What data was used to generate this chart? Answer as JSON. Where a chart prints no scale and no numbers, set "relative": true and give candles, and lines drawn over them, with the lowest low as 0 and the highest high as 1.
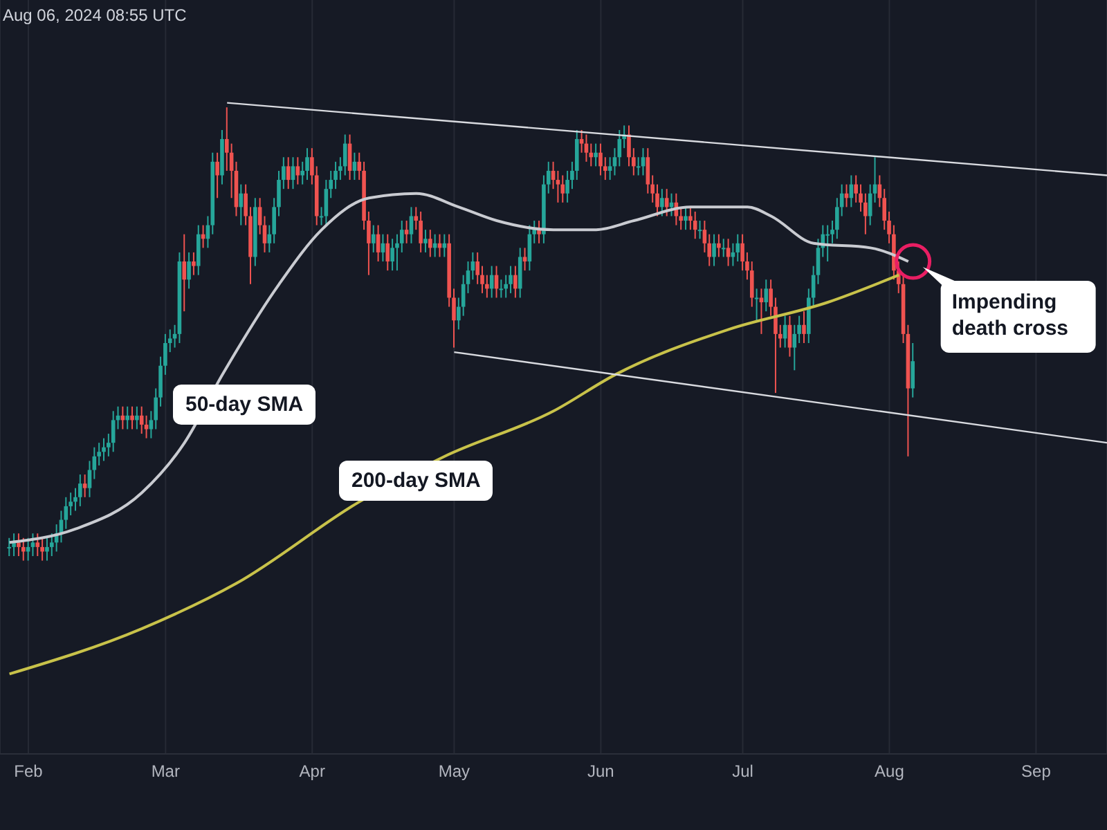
{
  "chart_data": {
    "type": "candlestick",
    "relative": true,
    "grid": "x",
    "xlim": [
      "2024-01-26",
      "2024-09-16"
    ],
    "xticks": [
      {
        "value": "2024-02-01",
        "label": "Feb"
      },
      {
        "value": "2024-03-01",
        "label": "Mar"
      },
      {
        "value": "2024-04-01",
        "label": "Apr"
      },
      {
        "value": "2024-05-01",
        "label": "May"
      },
      {
        "value": "2024-06-01",
        "label": "Jun"
      },
      {
        "value": "2024-07-01",
        "label": "Jul"
      },
      {
        "value": "2024-08-01",
        "label": "Aug"
      },
      {
        "value": "2024-09-01",
        "label": "Sep"
      }
    ],
    "x": [
      "2024-01-28",
      "2024-01-29",
      "2024-01-30",
      "2024-01-31",
      "2024-02-01",
      "2024-02-02",
      "2024-02-03",
      "2024-02-04",
      "2024-02-05",
      "2024-02-06",
      "2024-02-07",
      "2024-02-08",
      "2024-02-09",
      "2024-02-10",
      "2024-02-11",
      "2024-02-12",
      "2024-02-13",
      "2024-02-14",
      "2024-02-15",
      "2024-02-16",
      "2024-02-17",
      "2024-02-18",
      "2024-02-19",
      "2024-02-20",
      "2024-02-21",
      "2024-02-22",
      "2024-02-23",
      "2024-02-24",
      "2024-02-25",
      "2024-02-26",
      "2024-02-27",
      "2024-02-28",
      "2024-02-29",
      "2024-03-01",
      "2024-03-02",
      "2024-03-03",
      "2024-03-04",
      "2024-03-05",
      "2024-03-06",
      "2024-03-07",
      "2024-03-08",
      "2024-03-09",
      "2024-03-10",
      "2024-03-11",
      "2024-03-12",
      "2024-03-13",
      "2024-03-14",
      "2024-03-15",
      "2024-03-16",
      "2024-03-17",
      "2024-03-18",
      "2024-03-19",
      "2024-03-20",
      "2024-03-21",
      "2024-03-22",
      "2024-03-23",
      "2024-03-24",
      "2024-03-25",
      "2024-03-26",
      "2024-03-27",
      "2024-03-28",
      "2024-03-29",
      "2024-03-30",
      "2024-03-31",
      "2024-04-01",
      "2024-04-02",
      "2024-04-03",
      "2024-04-04",
      "2024-04-05",
      "2024-04-06",
      "2024-04-07",
      "2024-04-08",
      "2024-04-09",
      "2024-04-10",
      "2024-04-11",
      "2024-04-12",
      "2024-04-13",
      "2024-04-14",
      "2024-04-15",
      "2024-04-16",
      "2024-04-17",
      "2024-04-18",
      "2024-04-19",
      "2024-04-20",
      "2024-04-21",
      "2024-04-22",
      "2024-04-23",
      "2024-04-24",
      "2024-04-25",
      "2024-04-26",
      "2024-04-27",
      "2024-04-28",
      "2024-04-29",
      "2024-04-30",
      "2024-05-01",
      "2024-05-02",
      "2024-05-03",
      "2024-05-04",
      "2024-05-05",
      "2024-05-06",
      "2024-05-07",
      "2024-05-08",
      "2024-05-09",
      "2024-05-10",
      "2024-05-11",
      "2024-05-12",
      "2024-05-13",
      "2024-05-14",
      "2024-05-15",
      "2024-05-16",
      "2024-05-17",
      "2024-05-18",
      "2024-05-19",
      "2024-05-20",
      "2024-05-21",
      "2024-05-22",
      "2024-05-23",
      "2024-05-24",
      "2024-05-25",
      "2024-05-26",
      "2024-05-27",
      "2024-05-28",
      "2024-05-29",
      "2024-05-30",
      "2024-05-31",
      "2024-06-01",
      "2024-06-02",
      "2024-06-03",
      "2024-06-04",
      "2024-06-05",
      "2024-06-06",
      "2024-06-07",
      "2024-06-08",
      "2024-06-09",
      "2024-06-10",
      "2024-06-11",
      "2024-06-12",
      "2024-06-13",
      "2024-06-14",
      "2024-06-15",
      "2024-06-16",
      "2024-06-17",
      "2024-06-18",
      "2024-06-19",
      "2024-06-20",
      "2024-06-21",
      "2024-06-22",
      "2024-06-23",
      "2024-06-24",
      "2024-06-25",
      "2024-06-26",
      "2024-06-27",
      "2024-06-28",
      "2024-06-29",
      "2024-06-30",
      "2024-07-01",
      "2024-07-02",
      "2024-07-03",
      "2024-07-04",
      "2024-07-05",
      "2024-07-06",
      "2024-07-07",
      "2024-07-08",
      "2024-07-09",
      "2024-07-10",
      "2024-07-11",
      "2024-07-12",
      "2024-07-13",
      "2024-07-14",
      "2024-07-15",
      "2024-07-16",
      "2024-07-17",
      "2024-07-18",
      "2024-07-19",
      "2024-07-20",
      "2024-07-21",
      "2024-07-22",
      "2024-07-23",
      "2024-07-24",
      "2024-07-25",
      "2024-07-26",
      "2024-07-27",
      "2024-07-28",
      "2024-07-29",
      "2024-07-30",
      "2024-07-31",
      "2024-08-01",
      "2024-08-02",
      "2024-08-03",
      "2024-08-04",
      "2024-08-05",
      "2024-08-06"
    ],
    "ohlc": [
      [
        0.03,
        0.05,
        0.01,
        0.03
      ],
      [
        0.03,
        0.06,
        0.01,
        0.04
      ],
      [
        0.04,
        0.06,
        0.01,
        0.03
      ],
      [
        0.03,
        0.05,
        0.0,
        0.02
      ],
      [
        0.02,
        0.05,
        0.0,
        0.03
      ],
      [
        0.03,
        0.06,
        0.01,
        0.04
      ],
      [
        0.04,
        0.06,
        0.01,
        0.03
      ],
      [
        0.03,
        0.05,
        0.0,
        0.02
      ],
      [
        0.02,
        0.05,
        0.0,
        0.03
      ],
      [
        0.03,
        0.06,
        0.01,
        0.04
      ],
      [
        0.04,
        0.08,
        0.02,
        0.06
      ],
      [
        0.06,
        0.11,
        0.04,
        0.09
      ],
      [
        0.09,
        0.14,
        0.07,
        0.12
      ],
      [
        0.12,
        0.15,
        0.1,
        0.13
      ],
      [
        0.13,
        0.16,
        0.11,
        0.14
      ],
      [
        0.14,
        0.19,
        0.12,
        0.17
      ],
      [
        0.17,
        0.19,
        0.14,
        0.16
      ],
      [
        0.16,
        0.22,
        0.14,
        0.2
      ],
      [
        0.2,
        0.25,
        0.18,
        0.23
      ],
      [
        0.23,
        0.26,
        0.21,
        0.24
      ],
      [
        0.24,
        0.27,
        0.22,
        0.25
      ],
      [
        0.25,
        0.28,
        0.23,
        0.26
      ],
      [
        0.26,
        0.33,
        0.24,
        0.31
      ],
      [
        0.31,
        0.34,
        0.29,
        0.32
      ],
      [
        0.32,
        0.34,
        0.29,
        0.31
      ],
      [
        0.31,
        0.34,
        0.29,
        0.32
      ],
      [
        0.32,
        0.34,
        0.29,
        0.31
      ],
      [
        0.31,
        0.34,
        0.29,
        0.32
      ],
      [
        0.32,
        0.34,
        0.28,
        0.3
      ],
      [
        0.3,
        0.32,
        0.27,
        0.29
      ],
      [
        0.29,
        0.33,
        0.27,
        0.31
      ],
      [
        0.31,
        0.38,
        0.29,
        0.36
      ],
      [
        0.36,
        0.45,
        0.34,
        0.43
      ],
      [
        0.43,
        0.5,
        0.41,
        0.48
      ],
      [
        0.48,
        0.51,
        0.46,
        0.49
      ],
      [
        0.49,
        0.52,
        0.47,
        0.5
      ],
      [
        0.5,
        0.68,
        0.48,
        0.66
      ],
      [
        0.66,
        0.72,
        0.55,
        0.62
      ],
      [
        0.62,
        0.68,
        0.6,
        0.66
      ],
      [
        0.66,
        0.68,
        0.63,
        0.65
      ],
      [
        0.65,
        0.74,
        0.63,
        0.72
      ],
      [
        0.72,
        0.74,
        0.69,
        0.71
      ],
      [
        0.71,
        0.76,
        0.69,
        0.74
      ],
      [
        0.74,
        0.9,
        0.72,
        0.88
      ],
      [
        0.88,
        0.9,
        0.8,
        0.85
      ],
      [
        0.85,
        0.95,
        0.83,
        0.93
      ],
      [
        0.93,
        1.0,
        0.86,
        0.9
      ],
      [
        0.9,
        0.92,
        0.8,
        0.86
      ],
      [
        0.86,
        0.88,
        0.76,
        0.78
      ],
      [
        0.78,
        0.83,
        0.74,
        0.81
      ],
      [
        0.81,
        0.83,
        0.74,
        0.76
      ],
      [
        0.76,
        0.78,
        0.61,
        0.67
      ],
      [
        0.67,
        0.8,
        0.65,
        0.78
      ],
      [
        0.78,
        0.8,
        0.72,
        0.74
      ],
      [
        0.74,
        0.76,
        0.68,
        0.7
      ],
      [
        0.7,
        0.74,
        0.68,
        0.72
      ],
      [
        0.72,
        0.8,
        0.7,
        0.78
      ],
      [
        0.78,
        0.86,
        0.76,
        0.84
      ],
      [
        0.84,
        0.89,
        0.82,
        0.87
      ],
      [
        0.87,
        0.89,
        0.82,
        0.84
      ],
      [
        0.84,
        0.89,
        0.82,
        0.87
      ],
      [
        0.87,
        0.89,
        0.83,
        0.85
      ],
      [
        0.85,
        0.88,
        0.83,
        0.86
      ],
      [
        0.86,
        0.91,
        0.84,
        0.89
      ],
      [
        0.89,
        0.91,
        0.83,
        0.85
      ],
      [
        0.85,
        0.87,
        0.74,
        0.76
      ],
      [
        0.76,
        0.78,
        0.74,
        0.76
      ],
      [
        0.76,
        0.84,
        0.74,
        0.82
      ],
      [
        0.82,
        0.86,
        0.8,
        0.84
      ],
      [
        0.84,
        0.88,
        0.82,
        0.86
      ],
      [
        0.86,
        0.89,
        0.84,
        0.87
      ],
      [
        0.87,
        0.94,
        0.85,
        0.92
      ],
      [
        0.92,
        0.94,
        0.84,
        0.86
      ],
      [
        0.86,
        0.9,
        0.84,
        0.88
      ],
      [
        0.88,
        0.9,
        0.84,
        0.86
      ],
      [
        0.86,
        0.88,
        0.73,
        0.75
      ],
      [
        0.75,
        0.77,
        0.63,
        0.7
      ],
      [
        0.7,
        0.74,
        0.68,
        0.72
      ],
      [
        0.72,
        0.74,
        0.66,
        0.68
      ],
      [
        0.68,
        0.72,
        0.66,
        0.7
      ],
      [
        0.7,
        0.72,
        0.64,
        0.66
      ],
      [
        0.66,
        0.71,
        0.64,
        0.69
      ],
      [
        0.69,
        0.72,
        0.64,
        0.7
      ],
      [
        0.7,
        0.75,
        0.68,
        0.73
      ],
      [
        0.73,
        0.75,
        0.7,
        0.72
      ],
      [
        0.72,
        0.78,
        0.7,
        0.76
      ],
      [
        0.76,
        0.78,
        0.73,
        0.75
      ],
      [
        0.75,
        0.77,
        0.68,
        0.7
      ],
      [
        0.7,
        0.73,
        0.68,
        0.71
      ],
      [
        0.71,
        0.73,
        0.67,
        0.69
      ],
      [
        0.69,
        0.72,
        0.67,
        0.7
      ],
      [
        0.7,
        0.72,
        0.67,
        0.69
      ],
      [
        0.69,
        0.72,
        0.67,
        0.7
      ],
      [
        0.7,
        0.72,
        0.56,
        0.58
      ],
      [
        0.58,
        0.6,
        0.47,
        0.53
      ],
      [
        0.53,
        0.58,
        0.51,
        0.56
      ],
      [
        0.56,
        0.63,
        0.54,
        0.61
      ],
      [
        0.61,
        0.66,
        0.59,
        0.64
      ],
      [
        0.64,
        0.68,
        0.62,
        0.66
      ],
      [
        0.66,
        0.68,
        0.61,
        0.63
      ],
      [
        0.63,
        0.65,
        0.59,
        0.61
      ],
      [
        0.61,
        0.63,
        0.58,
        0.6
      ],
      [
        0.6,
        0.65,
        0.58,
        0.63
      ],
      [
        0.63,
        0.65,
        0.58,
        0.6
      ],
      [
        0.6,
        0.62,
        0.58,
        0.6
      ],
      [
        0.6,
        0.63,
        0.58,
        0.61
      ],
      [
        0.61,
        0.65,
        0.59,
        0.63
      ],
      [
        0.63,
        0.65,
        0.58,
        0.6
      ],
      [
        0.6,
        0.69,
        0.58,
        0.67
      ],
      [
        0.67,
        0.69,
        0.64,
        0.66
      ],
      [
        0.66,
        0.74,
        0.64,
        0.72
      ],
      [
        0.72,
        0.75,
        0.7,
        0.73
      ],
      [
        0.73,
        0.75,
        0.7,
        0.72
      ],
      [
        0.72,
        0.85,
        0.7,
        0.83
      ],
      [
        0.83,
        0.88,
        0.81,
        0.86
      ],
      [
        0.86,
        0.88,
        0.82,
        0.84
      ],
      [
        0.84,
        0.86,
        0.79,
        0.83
      ],
      [
        0.83,
        0.85,
        0.79,
        0.81
      ],
      [
        0.81,
        0.86,
        0.79,
        0.84
      ],
      [
        0.84,
        0.88,
        0.82,
        0.86
      ],
      [
        0.86,
        0.95,
        0.84,
        0.93
      ],
      [
        0.93,
        0.95,
        0.9,
        0.92
      ],
      [
        0.92,
        0.94,
        0.88,
        0.9
      ],
      [
        0.9,
        0.92,
        0.87,
        0.89
      ],
      [
        0.89,
        0.92,
        0.87,
        0.9
      ],
      [
        0.9,
        0.92,
        0.85,
        0.87
      ],
      [
        0.87,
        0.89,
        0.84,
        0.86
      ],
      [
        0.86,
        0.89,
        0.84,
        0.87
      ],
      [
        0.87,
        0.91,
        0.85,
        0.89
      ],
      [
        0.89,
        0.95,
        0.87,
        0.93
      ],
      [
        0.93,
        0.96,
        0.91,
        0.94
      ],
      [
        0.94,
        0.96,
        0.87,
        0.89
      ],
      [
        0.89,
        0.91,
        0.85,
        0.87
      ],
      [
        0.87,
        0.89,
        0.85,
        0.87
      ],
      [
        0.87,
        0.91,
        0.85,
        0.89
      ],
      [
        0.89,
        0.91,
        0.81,
        0.83
      ],
      [
        0.83,
        0.85,
        0.79,
        0.81
      ],
      [
        0.81,
        0.83,
        0.76,
        0.78
      ],
      [
        0.78,
        0.82,
        0.76,
        0.8
      ],
      [
        0.8,
        0.82,
        0.76,
        0.78
      ],
      [
        0.78,
        0.81,
        0.76,
        0.79
      ],
      [
        0.79,
        0.81,
        0.74,
        0.76
      ],
      [
        0.76,
        0.78,
        0.73,
        0.75
      ],
      [
        0.75,
        0.78,
        0.73,
        0.76
      ],
      [
        0.76,
        0.78,
        0.73,
        0.75
      ],
      [
        0.75,
        0.77,
        0.71,
        0.73
      ],
      [
        0.73,
        0.75,
        0.71,
        0.73
      ],
      [
        0.73,
        0.75,
        0.68,
        0.7
      ],
      [
        0.7,
        0.72,
        0.65,
        0.67
      ],
      [
        0.67,
        0.72,
        0.65,
        0.7
      ],
      [
        0.7,
        0.72,
        0.67,
        0.69
      ],
      [
        0.69,
        0.71,
        0.67,
        0.69
      ],
      [
        0.69,
        0.71,
        0.65,
        0.67
      ],
      [
        0.67,
        0.7,
        0.65,
        0.68
      ],
      [
        0.68,
        0.72,
        0.66,
        0.7
      ],
      [
        0.7,
        0.72,
        0.64,
        0.66
      ],
      [
        0.66,
        0.68,
        0.62,
        0.64
      ],
      [
        0.64,
        0.66,
        0.56,
        0.58
      ],
      [
        0.58,
        0.6,
        0.53,
        0.58
      ],
      [
        0.58,
        0.6,
        0.5,
        0.57
      ],
      [
        0.57,
        0.62,
        0.55,
        0.6
      ],
      [
        0.6,
        0.62,
        0.54,
        0.56
      ],
      [
        0.56,
        0.58,
        0.37,
        0.5
      ],
      [
        0.5,
        0.52,
        0.47,
        0.49
      ],
      [
        0.49,
        0.54,
        0.47,
        0.52
      ],
      [
        0.52,
        0.54,
        0.45,
        0.47
      ],
      [
        0.47,
        0.52,
        0.42,
        0.5
      ],
      [
        0.5,
        0.54,
        0.48,
        0.52
      ],
      [
        0.52,
        0.55,
        0.48,
        0.5
      ],
      [
        0.5,
        0.6,
        0.48,
        0.58
      ],
      [
        0.58,
        0.65,
        0.56,
        0.63
      ],
      [
        0.63,
        0.71,
        0.61,
        0.69
      ],
      [
        0.69,
        0.74,
        0.67,
        0.72
      ],
      [
        0.72,
        0.74,
        0.66,
        0.72
      ],
      [
        0.72,
        0.75,
        0.7,
        0.73
      ],
      [
        0.73,
        0.8,
        0.71,
        0.78
      ],
      [
        0.78,
        0.83,
        0.76,
        0.81
      ],
      [
        0.81,
        0.83,
        0.78,
        0.8
      ],
      [
        0.8,
        0.85,
        0.78,
        0.83
      ],
      [
        0.83,
        0.85,
        0.79,
        0.81
      ],
      [
        0.81,
        0.83,
        0.77,
        0.79
      ],
      [
        0.79,
        0.81,
        0.72,
        0.76
      ],
      [
        0.76,
        0.83,
        0.74,
        0.81
      ],
      [
        0.81,
        0.89,
        0.79,
        0.83
      ],
      [
        0.83,
        0.85,
        0.78,
        0.8
      ],
      [
        0.8,
        0.82,
        0.73,
        0.75
      ],
      [
        0.75,
        0.77,
        0.7,
        0.72
      ],
      [
        0.72,
        0.74,
        0.62,
        0.64
      ],
      [
        0.64,
        0.66,
        0.59,
        0.61
      ],
      [
        0.61,
        0.63,
        0.48,
        0.5
      ],
      [
        0.5,
        0.52,
        0.23,
        0.38
      ],
      [
        0.38,
        0.48,
        0.36,
        0.44
      ]
    ],
    "series": [
      {
        "type": "line",
        "name": "50-day SMA",
        "color": "#c9cbd1",
        "x": [
          "2024-01-28",
          "2024-02-11",
          "2024-02-25",
          "2024-03-05",
          "2024-03-13",
          "2024-03-25",
          "2024-04-03",
          "2024-04-13",
          "2024-04-23",
          "2024-05-02",
          "2024-05-10",
          "2024-05-22",
          "2024-05-31",
          "2024-06-08",
          "2024-06-20",
          "2024-07-02",
          "2024-07-07",
          "2024-07-16",
          "2024-07-28",
          "2024-08-05"
        ],
        "values": [
          0.04,
          0.07,
          0.15,
          0.26,
          0.41,
          0.61,
          0.73,
          0.8,
          0.81,
          0.78,
          0.75,
          0.73,
          0.73,
          0.75,
          0.78,
          0.78,
          0.76,
          0.7,
          0.69,
          0.66
        ]
      },
      {
        "type": "line",
        "name": "200-day SMA",
        "color": "#c8c24a",
        "x": [
          "2024-01-28",
          "2024-02-25",
          "2024-03-16",
          "2024-04-11",
          "2024-04-29",
          "2024-05-22",
          "2024-06-04",
          "2024-06-28",
          "2024-07-19",
          "2024-08-03"
        ],
        "values": [
          -0.25,
          -0.15,
          -0.05,
          0.13,
          0.23,
          0.33,
          0.41,
          0.51,
          0.57,
          0.63
        ]
      },
      {
        "type": "line",
        "color": "#d9dbe0",
        "x": [
          "2024-03-14",
          "2024-09-16"
        ],
        "values": [
          1.01,
          0.85
        ]
      },
      {
        "type": "line",
        "color": "#d9dbe0",
        "x": [
          "2024-05-01",
          "2024-09-16"
        ],
        "values": [
          0.46,
          0.26
        ]
      }
    ],
    "annotations": [
      "Aug 06, 2024 08:55 UTC",
      {
        "text": "Impending death cross",
        "x": "2024-08-06",
        "y": 0.66
      }
    ]
  }
}
